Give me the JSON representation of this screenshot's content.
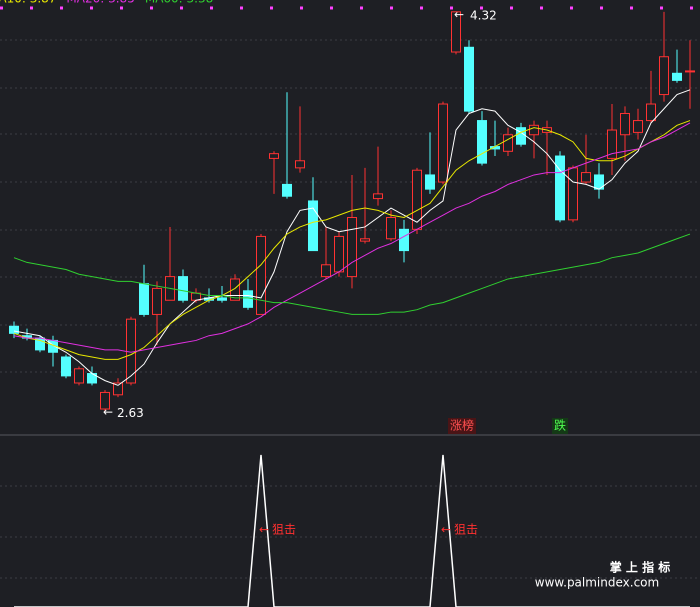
{
  "chart_data": {
    "type": "candlestick",
    "open": [
      2.99,
      2.95,
      2.94,
      2.93,
      2.86,
      2.75,
      2.79,
      2.64,
      2.7,
      2.75,
      3.17,
      3.04,
      3.1,
      3.2,
      3.1,
      3.11,
      3.11,
      3.1,
      3.14,
      3.04,
      3.7,
      3.59,
      3.66,
      3.52,
      3.2,
      3.22,
      3.2,
      3.35,
      3.53,
      3.36,
      3.4,
      3.4,
      3.63,
      3.6,
      4.15,
      4.17,
      3.86,
      3.75,
      3.73,
      3.83,
      3.8,
      3.81,
      3.71,
      3.44,
      3.6,
      3.63,
      3.7,
      3.8,
      3.81,
      3.86,
      3.97,
      4.06,
      4.07
    ],
    "close": [
      2.96,
      2.94,
      2.89,
      2.88,
      2.78,
      2.81,
      2.75,
      2.71,
      2.75,
      3.02,
      3.04,
      3.15,
      3.2,
      3.1,
      3.13,
      3.1,
      3.1,
      3.19,
      3.07,
      3.37,
      3.72,
      3.54,
      3.69,
      3.31,
      3.25,
      3.37,
      3.45,
      3.36,
      3.55,
      3.45,
      3.31,
      3.65,
      3.57,
      3.93,
      4.32,
      3.9,
      3.68,
      3.74,
      3.8,
      3.76,
      3.84,
      3.83,
      3.44,
      3.66,
      3.64,
      3.57,
      3.82,
      3.89,
      3.86,
      3.93,
      4.13,
      4.03,
      4.07
    ],
    "high": [
      3.01,
      2.98,
      2.95,
      2.95,
      2.87,
      2.82,
      2.82,
      2.72,
      2.77,
      3.03,
      3.25,
      3.18,
      3.41,
      3.23,
      3.15,
      3.15,
      3.16,
      3.21,
      3.19,
      3.38,
      3.73,
      3.98,
      3.92,
      3.62,
      3.41,
      3.39,
      3.63,
      3.66,
      3.75,
      3.48,
      3.44,
      3.66,
      3.81,
      3.94,
      4.32,
      4.2,
      3.9,
      3.86,
      3.83,
      3.85,
      3.86,
      3.86,
      3.73,
      3.67,
      3.8,
      3.68,
      3.93,
      3.92,
      3.91,
      4.07,
      4.32,
      4.16,
      4.2
    ],
    "low": [
      2.94,
      2.93,
      2.88,
      2.82,
      2.77,
      2.74,
      2.74,
      2.63,
      2.69,
      2.74,
      3.03,
      2.91,
      3.1,
      3.09,
      3.09,
      3.09,
      3.09,
      3.1,
      3.06,
      3.04,
      3.55,
      3.53,
      3.64,
      3.31,
      3.19,
      3.2,
      3.15,
      3.34,
      3.5,
      3.35,
      3.26,
      3.38,
      3.55,
      3.59,
      4.14,
      3.89,
      3.67,
      3.71,
      3.71,
      3.75,
      3.7,
      3.63,
      3.43,
      3.43,
      3.59,
      3.53,
      3.63,
      3.69,
      3.78,
      3.85,
      3.94,
      4.02,
      3.91
    ],
    "up_color": "#ff3232",
    "down_color": "#54ffff",
    "ylim": [
      2.53,
      4.37
    ],
    "series": [
      {
        "color": "#ffffff",
        "values": [
          2.97,
          2.96,
          2.95,
          2.91,
          2.88,
          2.84,
          2.79,
          2.76,
          2.74,
          2.78,
          2.83,
          2.92,
          3.0,
          3.05,
          3.1,
          3.11,
          3.12,
          3.12,
          3.12,
          3.11,
          3.22,
          3.39,
          3.48,
          3.49,
          3.41,
          3.39,
          3.4,
          3.41,
          3.45,
          3.49,
          3.46,
          3.43,
          3.48,
          3.52,
          3.82,
          3.89,
          3.91,
          3.9,
          3.84,
          3.81,
          3.77,
          3.72,
          3.65,
          3.6,
          3.59,
          3.57,
          3.61,
          3.68,
          3.73,
          3.85,
          3.91,
          3.97,
          3.99
        ]
      },
      {
        "name": "MA10: 3.87",
        "color": "#e8e800",
        "values": [
          2.96,
          2.94,
          2.93,
          2.91,
          2.89,
          2.87,
          2.86,
          2.85,
          2.85,
          2.87,
          2.9,
          2.95,
          3.0,
          3.04,
          3.07,
          3.1,
          3.12,
          3.15,
          3.2,
          3.25,
          3.32,
          3.38,
          3.41,
          3.43,
          3.44,
          3.46,
          3.48,
          3.49,
          3.48,
          3.46,
          3.45,
          3.48,
          3.51,
          3.58,
          3.65,
          3.69,
          3.72,
          3.75,
          3.78,
          3.81,
          3.83,
          3.82,
          3.8,
          3.77,
          3.7,
          3.69,
          3.69,
          3.71,
          3.74,
          3.77,
          3.8,
          3.84,
          3.86
        ]
      },
      {
        "name": "MA20: 3.85",
        "color": "#e030e0",
        "values": [
          2.95,
          2.94,
          2.94,
          2.93,
          2.92,
          2.91,
          2.9,
          2.89,
          2.89,
          2.88,
          2.89,
          2.9,
          2.91,
          2.92,
          2.93,
          2.95,
          2.96,
          2.98,
          3.0,
          3.03,
          3.07,
          3.1,
          3.13,
          3.16,
          3.19,
          3.22,
          3.26,
          3.29,
          3.32,
          3.34,
          3.37,
          3.4,
          3.43,
          3.46,
          3.49,
          3.51,
          3.54,
          3.56,
          3.59,
          3.61,
          3.63,
          3.64,
          3.64,
          3.66,
          3.68,
          3.7,
          3.72,
          3.73,
          3.74,
          3.77,
          3.79,
          3.82,
          3.85
        ]
      },
      {
        "name": "MA60: 3.38",
        "color": "#30d030",
        "values": [
          3.28,
          3.26,
          3.25,
          3.24,
          3.23,
          3.21,
          3.2,
          3.19,
          3.18,
          3.18,
          3.17,
          3.16,
          3.15,
          3.14,
          3.13,
          3.12,
          3.12,
          3.11,
          3.11,
          3.1,
          3.09,
          3.09,
          3.08,
          3.07,
          3.06,
          3.05,
          3.04,
          3.04,
          3.04,
          3.05,
          3.05,
          3.06,
          3.08,
          3.09,
          3.11,
          3.13,
          3.15,
          3.17,
          3.19,
          3.2,
          3.21,
          3.22,
          3.23,
          3.24,
          3.25,
          3.26,
          3.28,
          3.29,
          3.3,
          3.32,
          3.34,
          3.36,
          3.38
        ]
      }
    ],
    "signals": [
      null,
      null,
      null,
      null,
      null,
      null,
      null,
      null,
      null,
      null,
      null,
      null,
      null,
      null,
      null,
      null,
      null,
      null,
      null,
      null,
      null,
      null,
      null,
      null,
      null,
      null,
      null,
      null,
      null,
      null,
      null,
      null,
      null,
      null,
      "涨榜",
      null,
      null,
      null,
      null,
      null,
      null,
      null,
      "跌",
      null,
      null,
      null,
      null,
      null,
      null,
      null,
      null,
      null,
      null
    ],
    "indicator": {
      "label": "狙击",
      "color": "#ffffff",
      "ylim": [
        0,
        1
      ],
      "values": [
        0,
        0,
        0,
        0,
        0,
        0,
        0,
        0,
        0,
        0,
        0,
        0,
        0,
        0,
        0,
        0,
        0,
        0,
        0,
        1,
        0,
        0,
        0,
        0,
        0,
        0,
        0,
        0,
        0,
        0,
        0,
        0,
        0,
        1,
        0,
        0,
        0,
        0,
        0,
        0,
        0,
        0,
        0,
        0,
        0,
        0,
        0,
        0,
        0,
        0,
        0,
        0,
        0
      ]
    }
  },
  "watermark": {
    "title": "掌 上 指 标",
    "url": "www.palmindex.com"
  }
}
